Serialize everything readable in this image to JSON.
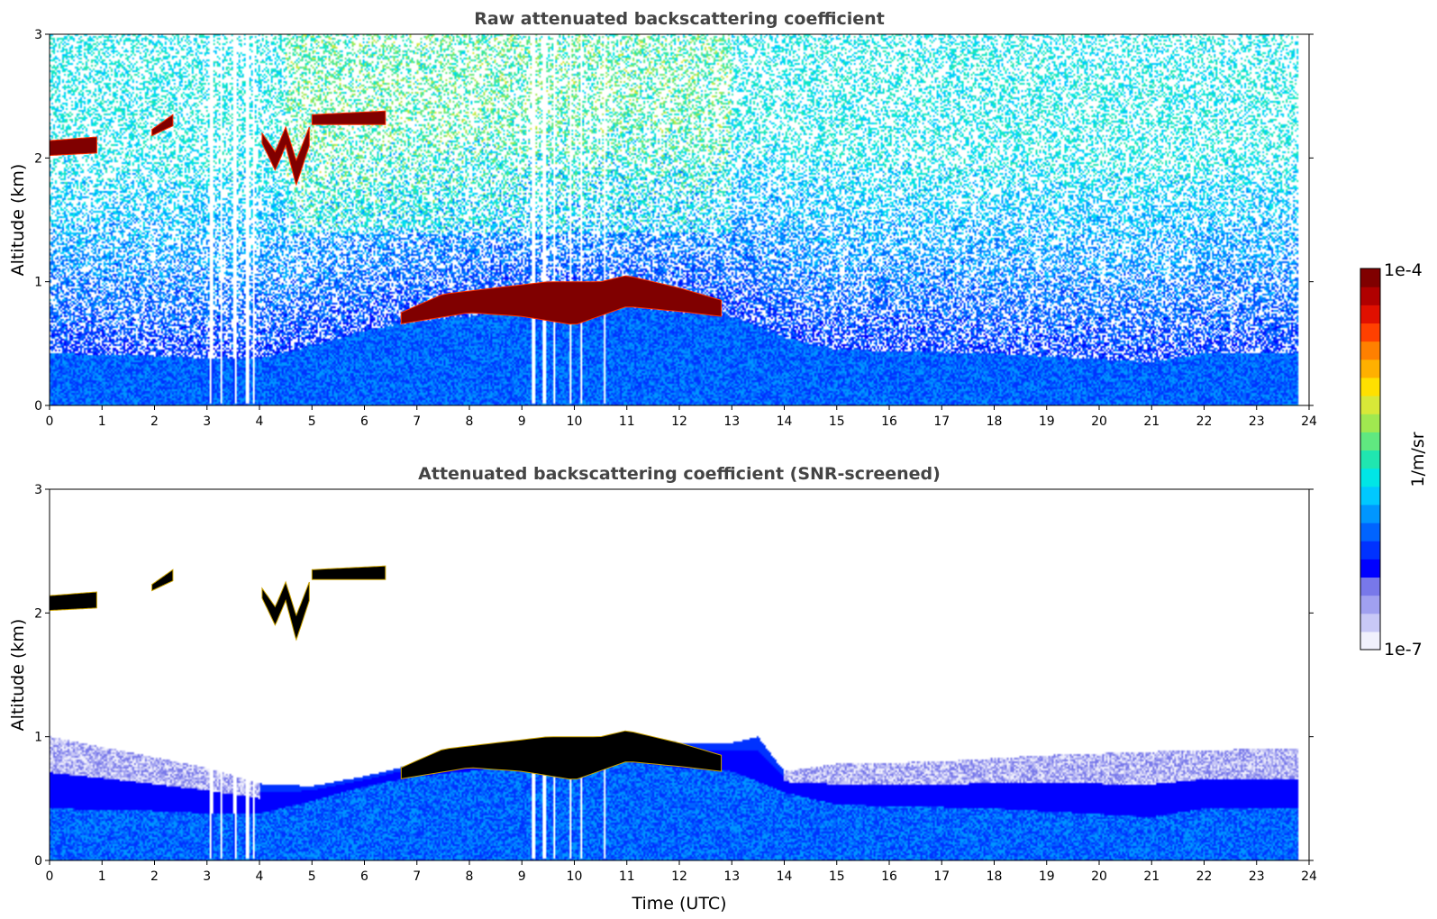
{
  "chart_data": [
    {
      "type": "heatmap",
      "title": "Raw attenuated backscattering coefficient",
      "xlabel": "",
      "ylabel": "Altitude (km)",
      "xlim": [
        0,
        24
      ],
      "ylim": [
        0,
        3
      ],
      "x_ticks": [
        "0",
        "1",
        "2",
        "3",
        "4",
        "5",
        "6",
        "7",
        "8",
        "9",
        "10",
        "11",
        "12",
        "13",
        "14",
        "15",
        "16",
        "17",
        "18",
        "19",
        "20",
        "21",
        "22",
        "23",
        "24"
      ],
      "y_ticks": [
        "0",
        "1",
        "2",
        "3"
      ],
      "data_end_time": 23.8,
      "screened": false,
      "boundary_layer_top_km": [
        [
          0,
          0.42
        ],
        [
          2,
          0.4
        ],
        [
          3,
          0.38
        ],
        [
          4,
          0.38
        ],
        [
          5,
          0.48
        ],
        [
          6,
          0.6
        ],
        [
          7,
          0.68
        ],
        [
          8,
          0.72
        ],
        [
          9,
          0.78
        ],
        [
          10,
          0.75
        ],
        [
          11,
          0.8
        ],
        [
          12,
          0.75
        ],
        [
          13,
          0.72
        ],
        [
          14,
          0.55
        ],
        [
          15,
          0.45
        ],
        [
          18,
          0.42
        ],
        [
          21,
          0.35
        ],
        [
          22,
          0.42
        ],
        [
          23.8,
          0.42
        ]
      ],
      "cloud_layers": [
        {
          "name": "low cloud",
          "start": 6.7,
          "end": 12.8,
          "base_km": [
            [
              6.7,
              0.66
            ],
            [
              8,
              0.75
            ],
            [
              9,
              0.72
            ],
            [
              10,
              0.65
            ],
            [
              11,
              0.8
            ],
            [
              12,
              0.76
            ],
            [
              12.8,
              0.72
            ]
          ],
          "top_km": [
            [
              6.7,
              0.75
            ],
            [
              7.5,
              0.9
            ],
            [
              8.5,
              0.95
            ],
            [
              9.5,
              1.0
            ],
            [
              10.5,
              1.0
            ],
            [
              11,
              1.05
            ],
            [
              12,
              0.95
            ],
            [
              12.8,
              0.85
            ]
          ],
          "value": "1e-4"
        },
        {
          "name": "cloud 2.1 km",
          "start": 0.0,
          "end": 0.9,
          "base_km": [
            [
              0,
              2.02
            ],
            [
              0.9,
              2.04
            ]
          ],
          "top_km": [
            [
              0,
              2.14
            ],
            [
              0.9,
              2.17
            ]
          ],
          "value": "1e-4"
        },
        {
          "name": "cloud 2.3 km",
          "start": 5.0,
          "end": 6.4,
          "base_km": [
            [
              5,
              2.27
            ],
            [
              6.4,
              2.27
            ]
          ],
          "top_km": [
            [
              5,
              2.35
            ],
            [
              6.4,
              2.38
            ]
          ],
          "value": "1e-4"
        },
        {
          "name": "cloud 2.2 km",
          "start": 1.95,
          "end": 2.35,
          "base_km": [
            [
              1.95,
              2.18
            ],
            [
              2.35,
              2.26
            ]
          ],
          "top_km": [
            [
              1.95,
              2.23
            ],
            [
              2.35,
              2.35
            ]
          ],
          "value": "1e-4"
        },
        {
          "name": "cloud 2.0 km wave",
          "start": 4.05,
          "end": 4.95,
          "base_km": [
            [
              4.05,
              2.12
            ],
            [
              4.3,
              1.9
            ],
            [
              4.5,
              2.1
            ],
            [
              4.7,
              1.78
            ],
            [
              4.95,
              2.1
            ]
          ],
          "top_km": [
            [
              4.05,
              2.2
            ],
            [
              4.3,
              2.05
            ],
            [
              4.5,
              2.25
            ],
            [
              4.7,
              1.98
            ],
            [
              4.95,
              2.25
            ]
          ],
          "value": "1e-4"
        }
      ],
      "data_gaps_hours": [
        [
          3.05,
          3.12
        ],
        [
          3.25,
          3.3
        ],
        [
          3.5,
          3.58
        ],
        [
          3.72,
          3.8
        ],
        [
          3.88,
          3.92
        ],
        [
          9.2,
          9.25
        ],
        [
          9.4,
          9.45
        ],
        [
          9.6,
          9.65
        ],
        [
          9.9,
          9.95
        ],
        [
          10.1,
          10.15
        ],
        [
          10.55,
          10.58
        ]
      ]
    },
    {
      "type": "heatmap",
      "title": "Attenuated backscattering coefficient (SNR-screened)",
      "xlabel": "Time (UTC)",
      "ylabel": "Altitude (km)",
      "xlim": [
        0,
        24
      ],
      "ylim": [
        0,
        3
      ],
      "x_ticks": [
        "0",
        "1",
        "2",
        "3",
        "4",
        "5",
        "6",
        "7",
        "8",
        "9",
        "10",
        "11",
        "12",
        "13",
        "14",
        "15",
        "16",
        "17",
        "18",
        "19",
        "20",
        "21",
        "22",
        "23",
        "24"
      ],
      "y_ticks": [
        "0",
        "1",
        "2",
        "3"
      ],
      "data_end_time": 23.8,
      "screened": true,
      "screened_top_km": [
        [
          0,
          1.0
        ],
        [
          3,
          0.75
        ],
        [
          4,
          0.62
        ],
        [
          5,
          0.6
        ],
        [
          6,
          0.68
        ],
        [
          7,
          0.78
        ],
        [
          8,
          0.88
        ],
        [
          10,
          0.92
        ],
        [
          11,
          1.0
        ],
        [
          12,
          0.95
        ],
        [
          13,
          0.95
        ],
        [
          13.5,
          1.0
        ],
        [
          14,
          0.72
        ],
        [
          15,
          0.78
        ],
        [
          17,
          0.8
        ],
        [
          19,
          0.85
        ],
        [
          21,
          0.88
        ],
        [
          23,
          0.9
        ],
        [
          23.8,
          0.9
        ]
      ],
      "cloud_fill": "#000000"
    }
  ],
  "colorbar": {
    "label": "1/m/sr",
    "max_label": "1e-4",
    "min_label": "1e-7",
    "colors": [
      "#f0f0fc",
      "#c8c8f6",
      "#a0a0f0",
      "#7878ea",
      "#0000ff",
      "#0032ff",
      "#0064ff",
      "#0096ff",
      "#00c8ff",
      "#00e6e6",
      "#20e6b0",
      "#60e880",
      "#a0e850",
      "#d8e838",
      "#ffe000",
      "#ffb000",
      "#ff8000",
      "#ff4000",
      "#e01000",
      "#b00000",
      "#800000"
    ]
  }
}
